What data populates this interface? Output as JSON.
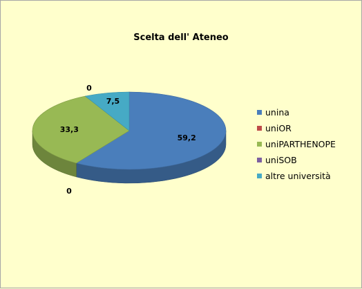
{
  "chart_data": {
    "type": "pie",
    "title": "Scelta dell' Ateneo",
    "categories": [
      "unina",
      "uniOR",
      "uniPARTHENOPE",
      "uniSOB",
      "altre università"
    ],
    "values": [
      59.2,
      0,
      33.3,
      0,
      7.5
    ],
    "data_labels": [
      "59,2",
      "0",
      "33,3",
      "0",
      "7,5"
    ],
    "colors": [
      "#4a7ebb",
      "#be4b48",
      "#98b954",
      "#7d60a0",
      "#46aac5"
    ],
    "style": "3d",
    "legend_position": "right"
  }
}
